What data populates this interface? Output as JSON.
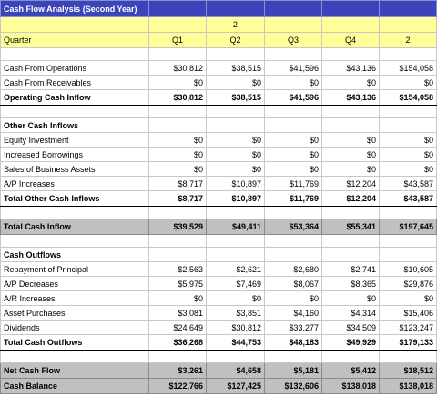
{
  "title": "Cash Flow Analysis (Second Year)",
  "header_rows": [
    [
      null,
      null,
      "2",
      null,
      null,
      null
    ],
    [
      "Quarter",
      "Q1",
      "Q2",
      "Q3",
      "Q4",
      "2"
    ]
  ],
  "groups": [
    {
      "rows": [
        {
          "label": "Cash From Operations",
          "values": [
            "$30,812",
            "$38,515",
            "$41,596",
            "$43,136",
            "$154,058"
          ]
        },
        {
          "label": "Cash From Receivables",
          "values": [
            "$0",
            "$0",
            "$0",
            "$0",
            "$0"
          ]
        },
        {
          "label": "Operating Cash Inflow",
          "values": [
            "$30,812",
            "$38,515",
            "$41,596",
            "$43,136",
            "$154,058"
          ],
          "style": "total"
        }
      ]
    },
    {
      "rows": [
        {
          "label": "Other Cash Inflows",
          "style": "heading"
        },
        {
          "label": "Equity Investment",
          "values": [
            "$0",
            "$0",
            "$0",
            "$0",
            "$0"
          ]
        },
        {
          "label": "Increased Borrowings",
          "values": [
            "$0",
            "$0",
            "$0",
            "$0",
            "$0"
          ]
        },
        {
          "label": "Sales of Business Assets",
          "values": [
            "$0",
            "$0",
            "$0",
            "$0",
            "$0"
          ]
        },
        {
          "label": "A/P Increases",
          "values": [
            "$8,717",
            "$10,897",
            "$11,769",
            "$12,204",
            "$43,587"
          ]
        },
        {
          "label": "Total Other Cash Inflows",
          "values": [
            "$8,717",
            "$10,897",
            "$11,769",
            "$12,204",
            "$43,587"
          ],
          "style": "total"
        }
      ]
    },
    {
      "rows": [
        {
          "label": "Total Cash Inflow",
          "values": [
            "$39,529",
            "$49,411",
            "$53,364",
            "$55,341",
            "$197,645"
          ],
          "style": "shaded"
        }
      ]
    },
    {
      "rows": [
        {
          "label": "Cash Outflows",
          "style": "heading"
        },
        {
          "label": "Repayment of Principal",
          "values": [
            "$2,563",
            "$2,621",
            "$2,680",
            "$2,741",
            "$10,605"
          ]
        },
        {
          "label": "A/P Decreases",
          "values": [
            "$5,975",
            "$7,469",
            "$8,067",
            "$8,365",
            "$29,876"
          ]
        },
        {
          "label": "A/R Increases",
          "values": [
            "$0",
            "$0",
            "$0",
            "$0",
            "$0"
          ]
        },
        {
          "label": "Asset Purchases",
          "values": [
            "$3,081",
            "$3,851",
            "$4,160",
            "$4,314",
            "$15,406"
          ]
        },
        {
          "label": "Dividends",
          "values": [
            "$24,649",
            "$30,812",
            "$33,277",
            "$34,509",
            "$123,247"
          ]
        },
        {
          "label": "Total Cash Outflows",
          "values": [
            "$36,268",
            "$44,753",
            "$48,183",
            "$49,929",
            "$179,133"
          ],
          "style": "total"
        }
      ]
    },
    {
      "rows": [
        {
          "label": "Net Cash Flow",
          "values": [
            "$3,261",
            "$4,658",
            "$5,181",
            "$5,412",
            "$18,512"
          ],
          "style": "shaded"
        },
        {
          "label": "Cash Balance",
          "values": [
            "$122,766",
            "$127,425",
            "$132,606",
            "$138,018",
            "$138,018"
          ],
          "style": "shaded"
        }
      ]
    }
  ]
}
